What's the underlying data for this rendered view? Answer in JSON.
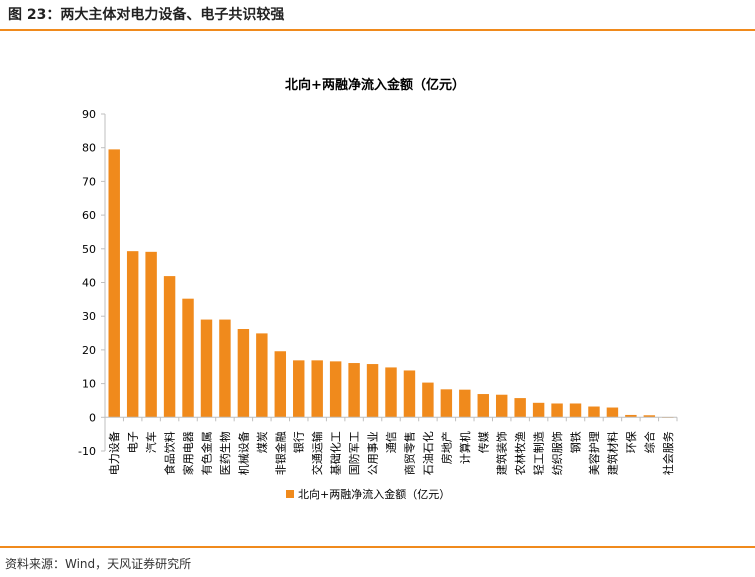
{
  "figure_title": "图 23：两大主体对电力设备、电子共识较强",
  "source": "资料来源：Wind，天风证券研究所",
  "colors": {
    "accent": "#f08a1c",
    "bar": "#f08a1c"
  },
  "chart_data": {
    "type": "bar",
    "title": "北向+两融净流入金额（亿元）",
    "legend": {
      "position": "bottom",
      "label": "北向+两融净流入金额（亿元）"
    },
    "ylim": [
      -10,
      90
    ],
    "yticks": [
      -10,
      0,
      10,
      20,
      30,
      40,
      50,
      60,
      70,
      80,
      90
    ],
    "grid": false,
    "categories": [
      "电力设备",
      "电子",
      "汽车",
      "食品饮料",
      "家用电器",
      "有色金属",
      "医药生物",
      "机械设备",
      "煤炭",
      "非银金融",
      "银行",
      "交通运输",
      "基础化工",
      "国防军工",
      "公用事业",
      "通信",
      "商贸零售",
      "石油石化",
      "房地产",
      "计算机",
      "传媒",
      "建筑装饰",
      "农林牧渔",
      "轻工制造",
      "纺织服饰",
      "钢铁",
      "美容护理",
      "建筑材料",
      "环保",
      "综合",
      "社会服务"
    ],
    "series": [
      {
        "name": "北向+两融净流入金额（亿元）",
        "values": [
          79.5,
          49.3,
          49.1,
          41.9,
          35.2,
          29.0,
          29.0,
          26.2,
          24.9,
          19.6,
          16.9,
          16.9,
          16.6,
          16.1,
          15.8,
          14.8,
          13.9,
          10.3,
          8.3,
          8.2,
          6.9,
          6.7,
          5.7,
          4.3,
          4.1,
          4.1,
          3.2,
          2.9,
          0.7,
          0.6,
          -0.1
        ]
      }
    ]
  }
}
